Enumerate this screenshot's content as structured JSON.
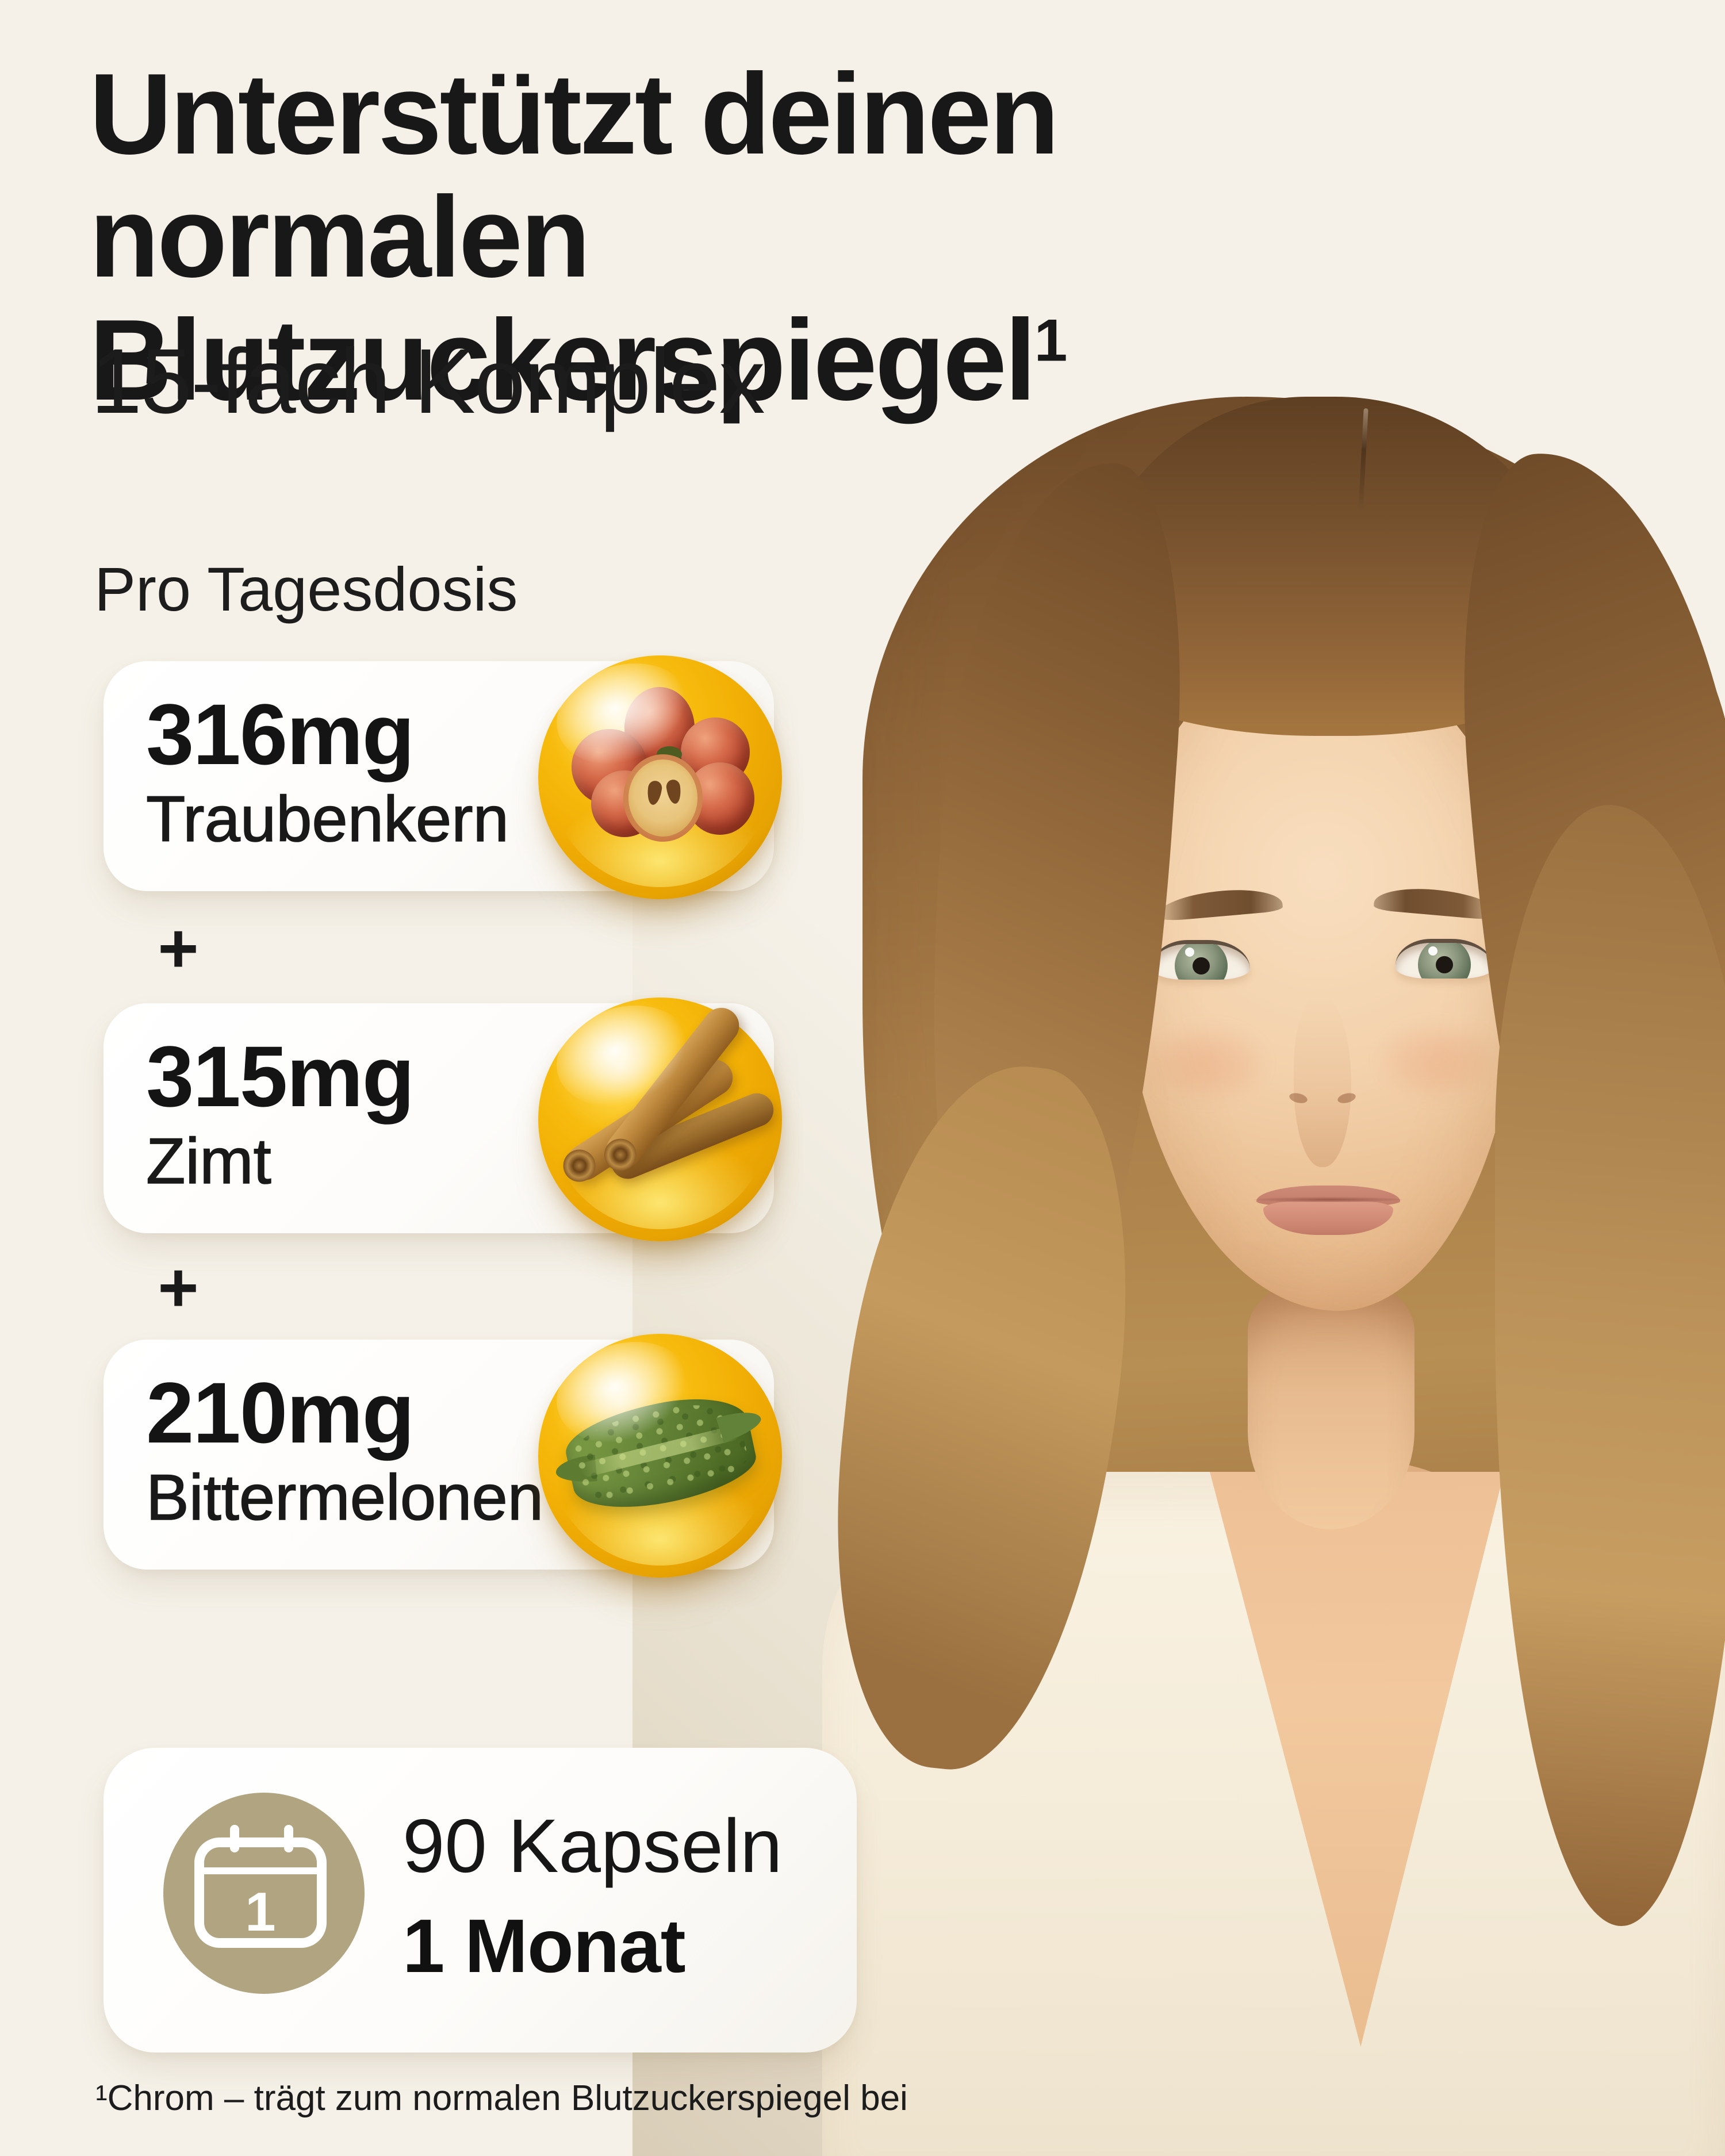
{
  "header": {
    "title_line1": "Unterstützt deinen",
    "title_line2": "normalen Blutzuckerspiegel",
    "title_superscript": "1",
    "subtitle": "15-fach Komplex"
  },
  "dosage": {
    "section_label": "Pro Tagesdosis",
    "separator": "+",
    "items": [
      {
        "amount": "316mg",
        "name": "Traubenkern",
        "icon": "grapes-capsule-icon"
      },
      {
        "amount": "315mg",
        "name": "Zimt",
        "icon": "cinnamon-capsule-icon"
      },
      {
        "amount": "210mg",
        "name": "Bittermelonen",
        "icon": "bittermelon-capsule-icon"
      }
    ]
  },
  "supply": {
    "icon": "calendar-icon",
    "calendar_day": "1",
    "capsule_count": "90 Kapseln",
    "duration": "1 Monat"
  },
  "footnote": "¹Chrom – trägt zum normalen Blutzuckerspiegel bei",
  "colors": {
    "background": "#F5F1E8",
    "card": "#FFFFFF",
    "text": "#1A1A1A",
    "capsule_yellow": "#F2B705",
    "calendar_gold": "#B1A480"
  }
}
